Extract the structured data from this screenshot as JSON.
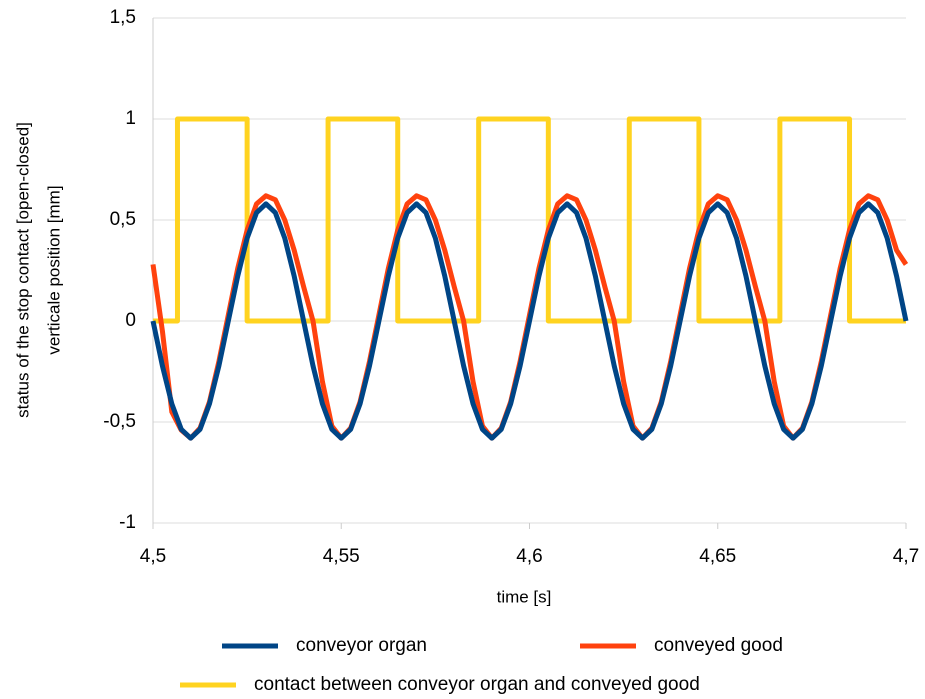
{
  "chart_data": {
    "type": "line",
    "ylabel": [
      "status of the stop contact [open-closed]",
      "verticale position [mm]"
    ],
    "xlabel": "time [s]",
    "x": [
      4.5,
      4.5025,
      4.505,
      4.5075,
      4.51,
      4.5125,
      4.515,
      4.5175,
      4.52,
      4.5225,
      4.525,
      4.5275,
      4.53,
      4.5325,
      4.535,
      4.5375,
      4.54,
      4.5425,
      4.545,
      4.5475,
      4.55,
      4.5525,
      4.555,
      4.5575,
      4.56,
      4.5625,
      4.565,
      4.5675,
      4.57,
      4.5725,
      4.575,
      4.5775,
      4.58,
      4.5825,
      4.585,
      4.5875,
      4.59,
      4.5925,
      4.595,
      4.5975,
      4.6,
      4.6025,
      4.605,
      4.6075,
      4.61,
      4.6125,
      4.615,
      4.6175,
      4.62,
      4.6225,
      4.625,
      4.6275,
      4.63,
      4.6325,
      4.635,
      4.6375,
      4.64,
      4.6425,
      4.645,
      4.6475,
      4.65,
      4.6525,
      4.655,
      4.6575,
      4.66,
      4.6625,
      4.665,
      4.6675,
      4.67,
      4.6725,
      4.675,
      4.6775,
      4.68,
      4.6825,
      4.685,
      4.6875,
      4.69,
      4.6925,
      4.695,
      4.6975,
      4.7
    ],
    "series": [
      {
        "name": "conveyor organ",
        "color": "#004586",
        "values": [
          0,
          -0.222,
          -0.41,
          -0.536,
          -0.58,
          -0.536,
          -0.41,
          -0.222,
          0,
          0.222,
          0.41,
          0.536,
          0.58,
          0.536,
          0.41,
          0.222,
          0,
          -0.222,
          -0.41,
          -0.536,
          -0.58,
          -0.536,
          -0.41,
          -0.222,
          0,
          0.222,
          0.41,
          0.536,
          0.58,
          0.536,
          0.41,
          0.222,
          0,
          -0.222,
          -0.41,
          -0.536,
          -0.58,
          -0.536,
          -0.41,
          -0.222,
          0,
          0.222,
          0.41,
          0.536,
          0.58,
          0.536,
          0.41,
          0.222,
          0,
          -0.222,
          -0.41,
          -0.536,
          -0.58,
          -0.536,
          -0.41,
          -0.222,
          0,
          0.222,
          0.41,
          0.536,
          0.58,
          0.536,
          0.41,
          0.222,
          0,
          -0.222,
          -0.41,
          -0.536,
          -0.58,
          -0.536,
          -0.41,
          -0.222,
          0,
          0.222,
          0.41,
          0.536,
          0.58,
          0.536,
          0.41,
          0.222,
          0
        ]
      },
      {
        "name": "conveyed good",
        "color": "#ff420e",
        "values": [
          0.28,
          -0.05,
          -0.45,
          -0.54,
          -0.58,
          -0.53,
          -0.4,
          -0.2,
          0.03,
          0.26,
          0.45,
          0.58,
          0.62,
          0.6,
          0.5,
          0.35,
          0.17,
          0.0,
          -0.3,
          -0.52,
          -0.58,
          -0.53,
          -0.4,
          -0.2,
          0.03,
          0.26,
          0.45,
          0.58,
          0.62,
          0.6,
          0.5,
          0.35,
          0.17,
          0.0,
          -0.3,
          -0.52,
          -0.58,
          -0.53,
          -0.4,
          -0.2,
          0.03,
          0.26,
          0.45,
          0.58,
          0.62,
          0.6,
          0.5,
          0.35,
          0.17,
          0.0,
          -0.3,
          -0.52,
          -0.58,
          -0.53,
          -0.4,
          -0.2,
          0.03,
          0.26,
          0.45,
          0.58,
          0.62,
          0.6,
          0.5,
          0.35,
          0.17,
          0.0,
          -0.3,
          -0.52,
          -0.58,
          -0.53,
          -0.4,
          -0.2,
          0.03,
          0.26,
          0.45,
          0.58,
          0.62,
          0.6,
          0.5,
          0.35,
          0.28
        ]
      },
      {
        "name": "contact between conveyor organ and conveyed good",
        "color": "#ffd320",
        "x": [
          4.5,
          4.5065,
          4.5065,
          4.525,
          4.525,
          4.5465,
          4.5465,
          4.565,
          4.565,
          4.5865,
          4.5865,
          4.605,
          4.605,
          4.6265,
          4.6265,
          4.645,
          4.645,
          4.6665,
          4.6665,
          4.685,
          4.685,
          4.7
        ],
        "values": [
          0,
          0,
          1,
          1,
          0,
          0,
          1,
          1,
          0,
          0,
          1,
          1,
          0,
          0,
          1,
          1,
          0,
          0,
          1,
          1,
          0,
          0
        ]
      }
    ],
    "xlim": [
      4.5,
      4.7
    ],
    "xticks": [
      {
        "value": 4.5,
        "label": "4,5"
      },
      {
        "value": 4.55,
        "label": "4,55"
      },
      {
        "value": 4.6,
        "label": "4,6"
      },
      {
        "value": 4.65,
        "label": "4,65"
      },
      {
        "value": 4.7,
        "label": "4,7"
      }
    ],
    "ylim": [
      -1,
      1.5
    ],
    "yticks": [
      -1,
      {
        "value": -0.5,
        "label": "-0,5"
      },
      0,
      {
        "value": 0.5,
        "label": "0,5"
      },
      1,
      {
        "value": 1.5,
        "label": "1,5"
      }
    ],
    "grid": true,
    "legend": "bottom"
  }
}
